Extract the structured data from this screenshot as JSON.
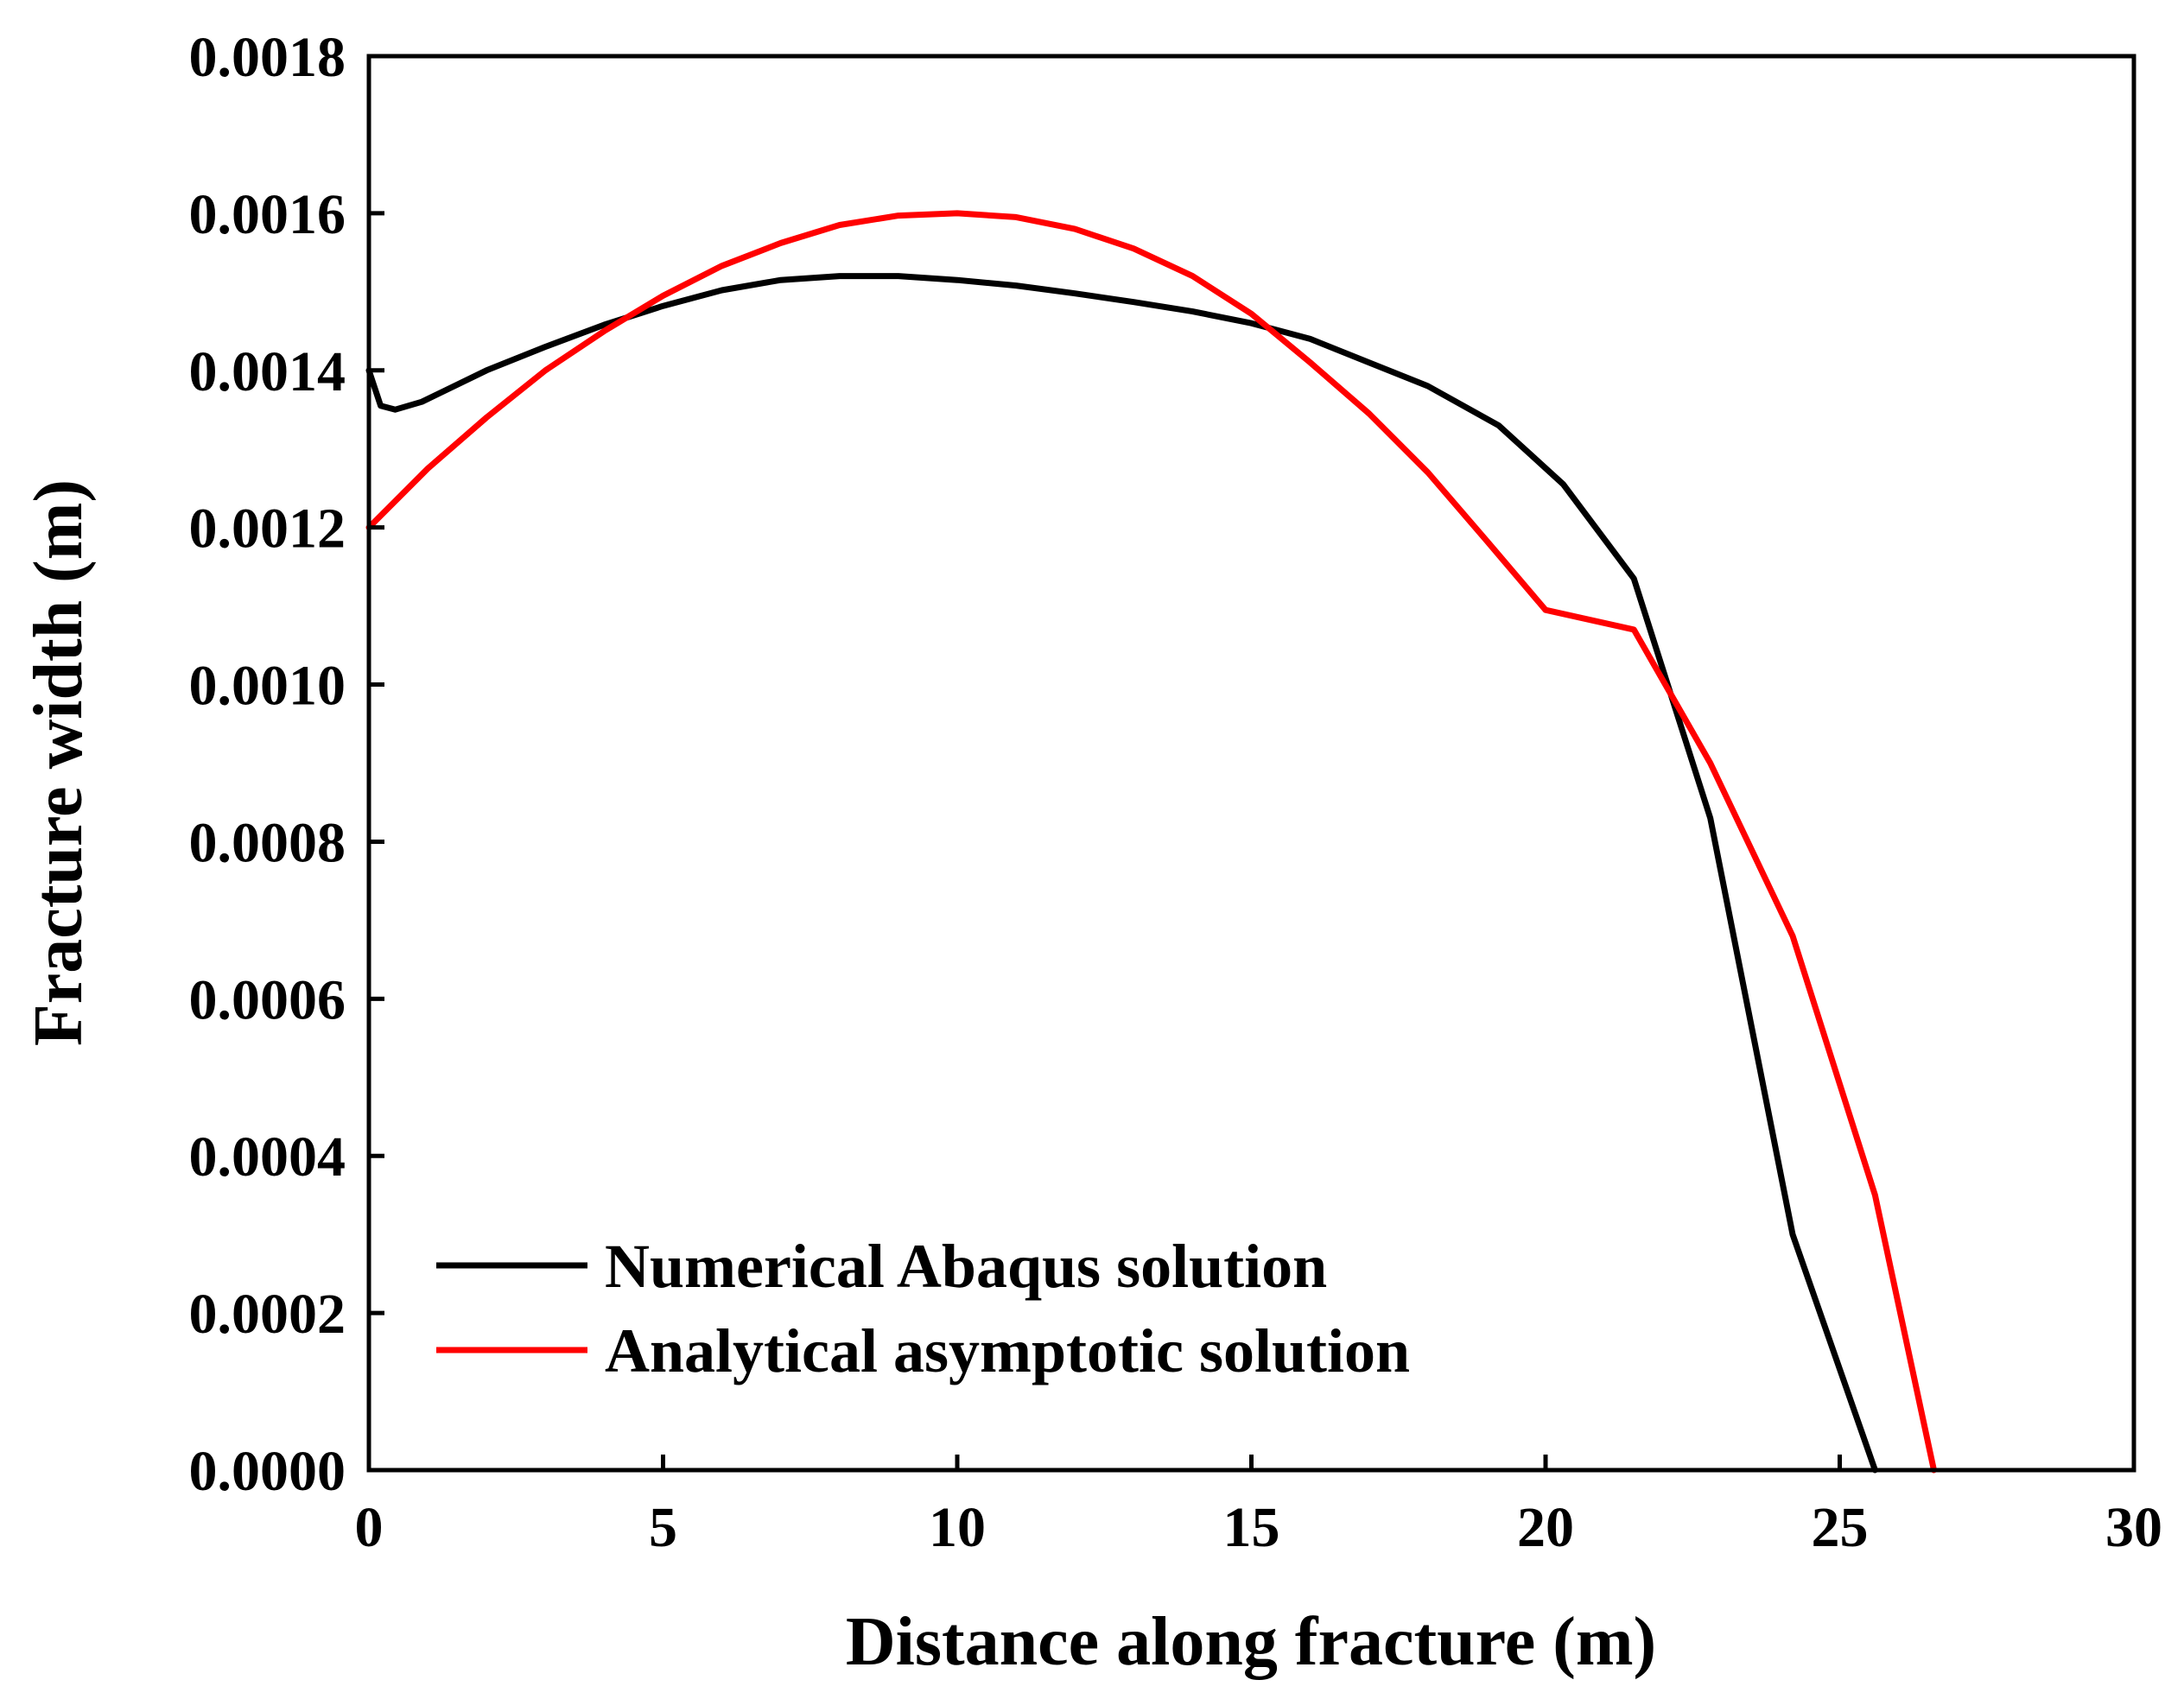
{
  "chart_data": {
    "type": "line",
    "title": "",
    "xlabel": "Distance along fracture (m)",
    "ylabel": "Fracture width (m)",
    "xlim": [
      0,
      30
    ],
    "ylim": [
      0,
      0.0018
    ],
    "xticks": [
      0,
      5,
      10,
      15,
      20,
      25,
      30
    ],
    "xtick_labels": [
      "0",
      "5",
      "10",
      "15",
      "20",
      "25",
      "30"
    ],
    "yticks": [
      0,
      0.0002,
      0.0004,
      0.0006,
      0.0008,
      0.001,
      0.0012,
      0.0014,
      0.0016,
      0.0018
    ],
    "ytick_labels": [
      "0.0000",
      "0.0002",
      "0.0004",
      "0.0006",
      "0.0008",
      "0.0010",
      "0.0012",
      "0.0014",
      "0.0016",
      "0.0018"
    ],
    "grid": false,
    "legend_position": "bottom-left",
    "series": [
      {
        "name": "Numerical Abaqus solution",
        "color": "#000000",
        "x": [
          0,
          0.2,
          0.45,
          0.9,
          2.0,
          3.0,
          4.0,
          5.0,
          6.0,
          7.0,
          8.0,
          8.5,
          9.0,
          10.0,
          11.0,
          12.0,
          13.0,
          14.0,
          15.0,
          16.0,
          17.0,
          18.0,
          19.2,
          20.3,
          21.5,
          22.8,
          24.2,
          25.6
        ],
        "y": [
          0.0014,
          0.001355,
          0.00135,
          0.00136,
          0.0014,
          0.00143,
          0.001458,
          0.001482,
          0.001502,
          0.001515,
          0.00152,
          0.00152,
          0.00152,
          0.001515,
          0.001508,
          0.001498,
          0.001487,
          0.001475,
          0.00146,
          0.00144,
          0.00141,
          0.00138,
          0.00133,
          0.001255,
          0.001135,
          0.00083,
          0.0003,
          0.0
        ]
      },
      {
        "name": "Analytical asymptotic solution",
        "color": "#ff0000",
        "x": [
          0,
          1,
          2,
          3,
          4,
          5,
          6,
          7,
          8,
          9,
          10,
          11,
          12,
          13,
          14,
          15,
          16,
          17,
          18,
          19,
          20,
          21.5,
          22.8,
          24.2,
          25.6,
          26.6
        ],
        "y": [
          0.0012,
          0.001275,
          0.00134,
          0.0014,
          0.00145,
          0.001495,
          0.001533,
          0.001562,
          0.001585,
          0.001597,
          0.0016,
          0.001595,
          0.00158,
          0.001555,
          0.00152,
          0.001472,
          0.00141,
          0.001345,
          0.00127,
          0.001183,
          0.001095,
          0.00107,
          0.0009,
          0.00068,
          0.00035,
          0.0
        ]
      }
    ]
  }
}
